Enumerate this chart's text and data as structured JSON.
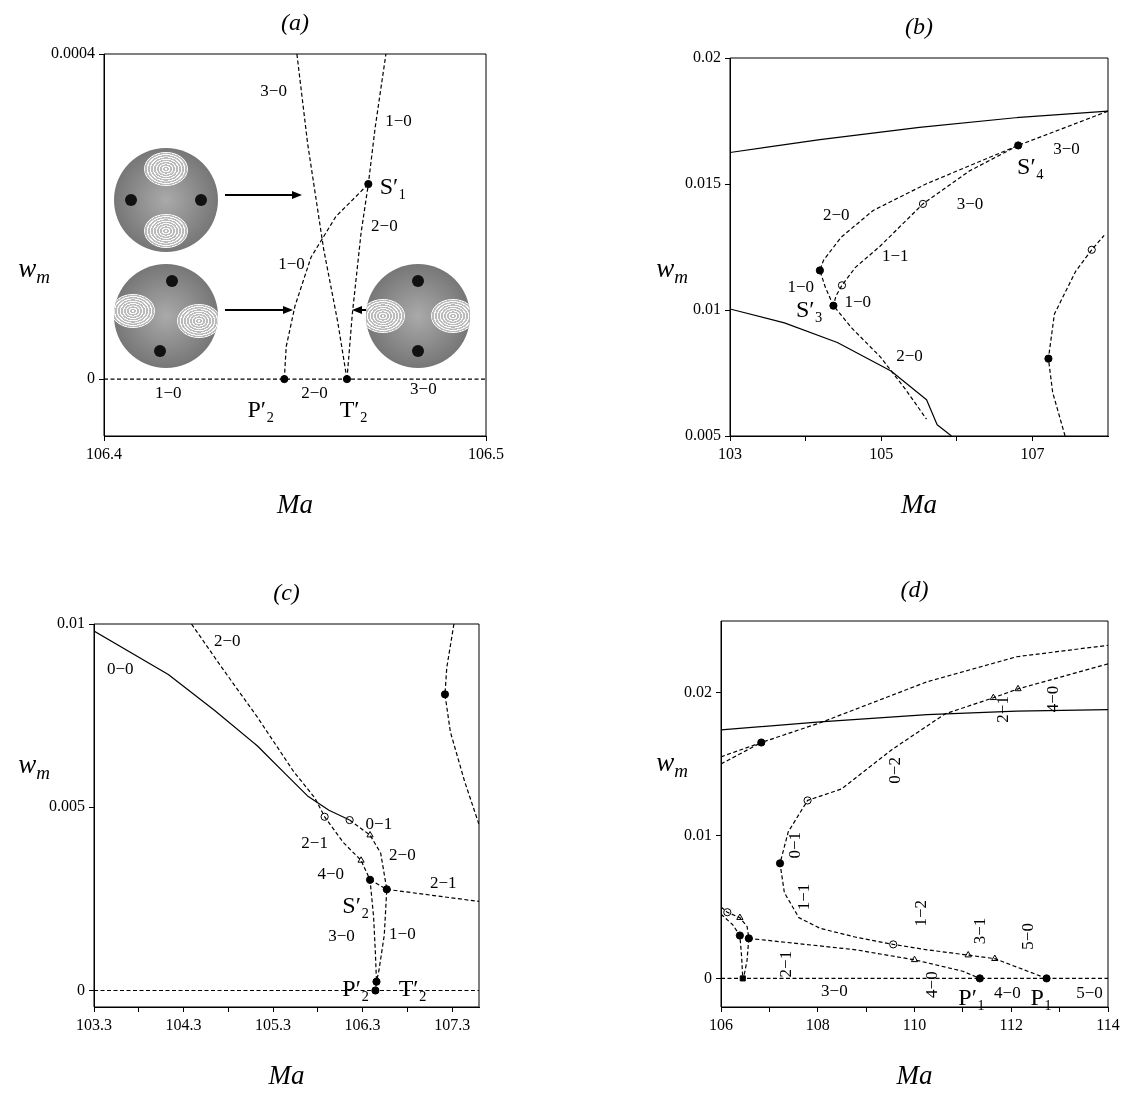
{
  "chart_data": [
    {
      "type": "line",
      "title": "(a)",
      "xlabel": "Ma",
      "ylabel": "w$_{m}$",
      "xlim": [
        106.4,
        106.5
      ],
      "ylim": [
        -7e-05,
        0.0004
      ],
      "xticks": [
        106.4,
        106.5
      ],
      "yticks": [
        0,
        0.0004
      ],
      "series": [
        {
          "type": "line",
          "line_style": "dashed",
          "color": "#000000",
          "x": [
            106.4,
            106.5
          ],
          "values": [
            0,
            0
          ]
        },
        {
          "type": "line",
          "line_style": "dashed",
          "color": "#000000",
          "x": [
            106.4636,
            106.4612,
            106.4575,
            106.4533,
            106.4505
          ],
          "values": [
            0,
            7e-05,
            0.00016,
            0.00029,
            0.0004
          ]
        },
        {
          "type": "line",
          "line_style": "dashed",
          "color": "#000000",
          "x": [
            106.4636,
            106.465,
            106.4673,
            106.4692,
            106.471,
            106.4738
          ],
          "values": [
            0,
            8e-05,
            0.00018,
            0.00024,
            0.00031,
            0.0004
          ]
        },
        {
          "type": "line",
          "line_style": "dashed",
          "color": "#000000",
          "x": [
            106.4472,
            106.4477,
            106.45,
            106.4542,
            106.4607,
            106.4692
          ],
          "values": [
            0,
            4e-05,
            9e-05,
            0.00015,
            0.0002,
            0.00024
          ]
        },
        {
          "type": "scatter",
          "marker": "circle",
          "color": "#000000",
          "x": [
            106.4472,
            106.4636,
            106.4692
          ],
          "values": [
            0,
            0,
            0.00024
          ]
        }
      ],
      "annotations": [
        "3−0",
        "1−0",
        "S′₁",
        "2−0",
        "1−0",
        "1−0",
        "2−0",
        "3−0",
        "P′₂",
        "T′₂"
      ]
    },
    {
      "type": "line",
      "title": "(b)",
      "xlabel": "Ma",
      "ylabel": "w$_{m}$",
      "xlim": [
        103,
        108
      ],
      "ylim": [
        0.005,
        0.02
      ],
      "xticks": [
        103,
        {
          "value": 104,
          "label": null
        },
        105,
        {
          "value": 106,
          "label": null
        },
        107
      ],
      "yticks": [
        0.005,
        0.01,
        0.015,
        0.02
      ],
      "series": [
        {
          "type": "line",
          "line_style": "solid",
          "color": "#000000",
          "x": [
            103,
            104.19,
            105.505,
            106.774,
            108
          ],
          "values": [
            0.01625,
            0.01676,
            0.01725,
            0.01763,
            0.01789
          ]
        },
        {
          "type": "line",
          "line_style": "solid",
          "color": "#000000",
          "x": [
            103,
            103.72,
            104.42,
            105.13,
            105.6,
            105.74,
            105.93
          ],
          "values": [
            0.01004,
            0.00949,
            0.00871,
            0.00758,
            0.00644,
            0.00545,
            0.005
          ]
        },
        {
          "type": "line",
          "line_style": "dashed",
          "color": "#000000",
          "x": [
            108,
            106.812,
            105.599,
            104.894,
            104.471,
            104.236,
            104.189,
            104.26,
            104.368,
            104.612,
            104.988,
            105.317,
            105.599
          ],
          "values": [
            0.01789,
            0.01653,
            0.01501,
            0.01395,
            0.01289,
            0.01197,
            0.01157,
            0.01091,
            0.01017,
            0.00928,
            0.00814,
            0.00687,
            0.00567
          ]
        },
        {
          "type": "line",
          "line_style": "dashed",
          "color": "#000000",
          "x": [
            106.812,
            106.163,
            105.552,
            104.988,
            104.659,
            104.481,
            104.401,
            104.368
          ],
          "values": [
            0.01653,
            0.01551,
            0.01421,
            0.01254,
            0.01169,
            0.01098,
            0.01055,
            0.01017
          ]
        },
        {
          "type": "line",
          "line_style": "dashed",
          "color": "#000000",
          "x": [
            107.432,
            107.268,
            107.212,
            107.291,
            107.573,
            107.785,
            107.949
          ],
          "values": [
            0.005,
            0.00673,
            0.00807,
            0.00984,
            0.01154,
            0.01239,
            0.01296
          ]
        },
        {
          "type": "scatter",
          "marker": "circle",
          "color": "#000000",
          "x": [
            106.812,
            104.189,
            104.368,
            107.212
          ],
          "values": [
            0.01653,
            0.01157,
            0.01017,
            0.00807
          ]
        },
        {
          "type": "scatter",
          "marker": "circle",
          "color": "#ffffff",
          "x": [
            105.552,
            104.481,
            107.785
          ],
          "values": [
            0.01421,
            0.01098,
            0.01239
          ]
        }
      ],
      "annotations": [
        "S′₄",
        "3−0",
        "3−0",
        "2−0",
        "1−1",
        "1−0",
        "S′₃",
        "1−0",
        "2−0"
      ]
    },
    {
      "type": "line",
      "title": "(c)",
      "xlabel": "Ma",
      "ylabel": "w$_{m}$",
      "xlim": [
        103.3,
        107.6
      ],
      "ylim": [
        -0.00045,
        0.01
      ],
      "xticks": [
        103.3,
        {
          "value": 103.8,
          "label": null
        },
        104.3,
        {
          "value": 104.8,
          "label": null
        },
        105.3,
        {
          "value": 105.8,
          "label": null
        },
        106.3,
        {
          "value": 106.8,
          "label": null
        },
        107.3
      ],
      "yticks": [
        0,
        0.005,
        0.01
      ],
      "series": [
        {
          "type": "line",
          "line_style": "dashed",
          "color": "#000000",
          "x": [
            103.3,
            107.6
          ],
          "values": [
            0,
            0
          ]
        },
        {
          "type": "line",
          "line_style": "solid",
          "color": "#000000",
          "x": [
            103.3,
            104.13,
            104.648,
            105.126,
            105.446,
            105.685,
            105.924,
            106.155
          ],
          "values": [
            0.00981,
            0.00862,
            0.00764,
            0.00667,
            0.00589,
            0.00531,
            0.00492,
            0.00465
          ]
        },
        {
          "type": "line",
          "line_style": "dashed",
          "color": "#000000",
          "x": [
            104.389,
            104.728,
            105.127,
            105.525,
            105.765,
            105.876,
            106.084,
            106.283,
            106.383,
            106.423,
            106.443,
            106.455,
            106.443
          ],
          "values": [
            0.01,
            0.00881,
            0.00745,
            0.00599,
            0.00526,
            0.00474,
            0.00404,
            0.00355,
            0.00302,
            0.002,
            0.00102,
            0.00024,
            0
          ]
        },
        {
          "type": "line",
          "line_style": "dashed",
          "color": "#000000",
          "x": [
            106.155,
            106.383,
            106.502,
            106.57,
            106.542,
            106.482,
            106.455
          ],
          "values": [
            0.00465,
            0.00424,
            0.00375,
            0.00276,
            0.00151,
            0.00054,
            0.00024
          ]
        },
        {
          "type": "line",
          "line_style": "dashed",
          "color": "#000000",
          "x": [
            106.383,
            106.57,
            107.6
          ],
          "values": [
            0.00302,
            0.00276,
            0.00243
          ]
        },
        {
          "type": "line",
          "line_style": "dashed",
          "color": "#000000",
          "x": [
            107.32,
            107.24,
            107.22,
            107.28,
            107.44,
            107.6
          ],
          "values": [
            0.01,
            0.00881,
            0.00808,
            0.00706,
            0.0057,
            0.00453
          ]
        },
        {
          "type": "scatter",
          "marker": "circle",
          "color": "#000000",
          "x": [
            106.383,
            106.57,
            107.22,
            106.455,
            106.443
          ],
          "values": [
            0.00302,
            0.00276,
            0.00808,
            0.00024,
            0
          ]
        },
        {
          "type": "scatter",
          "marker": "circle",
          "color": "#ffffff",
          "x": [
            106.155,
            105.876
          ],
          "values": [
            0.00465,
            0.00474
          ]
        },
        {
          "type": "scatter",
          "marker": "triangle",
          "color": "#ffffff",
          "x": [
            106.283,
            106.383
          ],
          "values": [
            0.00355,
            0.00424
          ]
        }
      ],
      "annotations": [
        "2−0",
        "0−0",
        "0−1",
        "2−1",
        "2−0",
        "4−0",
        "2−1",
        "S′₂",
        "3−0",
        "1−0",
        "P′₂",
        "T′₂"
      ]
    },
    {
      "type": "line",
      "title": "(d)",
      "xlabel": "Ma",
      "ylabel": "w$_{m}$",
      "xlim": [
        106,
        114
      ],
      "ylim": [
        -0.002,
        0.025
      ],
      "xticks": [
        106,
        {
          "value": 107,
          "label": null
        },
        108,
        {
          "value": 109,
          "label": null
        },
        110,
        {
          "value": 111,
          "label": null
        },
        112,
        {
          "value": 113,
          "label": null
        },
        114
      ],
      "yticks": [
        0,
        0.01,
        0.02
      ],
      "series": [
        {
          "type": "line",
          "line_style": "dashed",
          "color": "#000000",
          "x": [
            106,
            114
          ],
          "values": [
            0,
            0
          ]
        },
        {
          "type": "line",
          "line_style": "solid",
          "color": "#000000",
          "x": [
            106,
            108.05,
            110.26,
            112.11,
            114
          ],
          "values": [
            0.01738,
            0.01795,
            0.01845,
            0.0187,
            0.0188
          ]
        },
        {
          "type": "line",
          "line_style": "dashed",
          "color": "#000000",
          "x": [
            106,
            106.833,
            108.05,
            110.26,
            112.11,
            114
          ],
          "values": [
            0.0155,
            0.0165,
            0.01788,
            0.02075,
            0.0225,
            0.0233
          ]
        },
        {
          "type": "line",
          "line_style": "dashed",
          "color": "#000000",
          "x": [
            106,
            106.833
          ],
          "values": [
            0.015,
            0.0165
          ]
        },
        {
          "type": "line",
          "line_style": "dashed",
          "color": "#000000",
          "x": [
            114,
            112.14,
            111.63,
            110.63,
            109.53,
            108.49,
            107.79,
            107.39,
            107.22,
            107.31,
            107.61,
            108.05,
            108.79,
            109.56,
            110.26,
            111.11,
            111.66,
            112.73
          ],
          "values": [
            0.022,
            0.02025,
            0.01963,
            0.0185,
            0.016,
            0.01325,
            0.01245,
            0.01025,
            0.00805,
            0.006,
            0.00425,
            0.0035,
            0.00288,
            0.00238,
            0.002,
            0.00163,
            0.00138,
            0
          ]
        },
        {
          "type": "line",
          "line_style": "dashed",
          "color": "#000000",
          "x": [
            106.575,
            108.79,
            110,
            111,
            111.35
          ],
          "values": [
            0.0028,
            0.002,
            0.0013,
            0.0005,
            0
          ]
        },
        {
          "type": "line",
          "line_style": "dashed",
          "color": "#000000",
          "x": [
            106,
            106.13,
            106.39,
            106.54,
            106.575,
            106.538,
            106.465
          ],
          "values": [
            0.005,
            0.00463,
            0.00425,
            0.00363,
            0.0028,
            0.00125,
            0
          ]
        },
        {
          "type": "line",
          "line_style": "dashed",
          "color": "#000000",
          "x": [
            106,
            106.243,
            106.39,
            106.427,
            106.45
          ],
          "values": [
            0.0045,
            0.00375,
            0.003,
            0.0015,
            0
          ]
        },
        {
          "type": "scatter",
          "marker": "circle",
          "color": "#000000",
          "x": [
            106.833,
            107.22,
            106.575,
            106.39,
            111.35,
            112.73
          ],
          "values": [
            0.0165,
            0.00805,
            0.0028,
            0.003,
            0,
            0
          ]
        },
        {
          "type": "scatter",
          "marker": "square",
          "color": "#000000",
          "x": [
            106.45
          ],
          "values": [
            0
          ]
        },
        {
          "type": "scatter",
          "marker": "circle",
          "color": "#ffffff",
          "x": [
            107.79,
            109.56,
            106.13
          ],
          "values": [
            0.01245,
            0.00238,
            0.00463
          ]
        },
        {
          "type": "scatter",
          "marker": "triangle",
          "color": "#ffffff",
          "x": [
            112.14,
            111.63,
            111.11,
            111.66,
            110,
            106.39
          ],
          "values": [
            0.02025,
            0.01963,
            0.00163,
            0.00138,
            0.0013,
            0.00425
          ]
        }
      ],
      "annotations": [
        "2−1",
        "4−0",
        "0−2",
        "0−1",
        "1−1",
        "1−2",
        "3−1",
        "5−0",
        "2−1",
        "3−0",
        "4−0",
        "P′₁",
        "4−0",
        "P₁",
        "5−0"
      ]
    }
  ]
}
